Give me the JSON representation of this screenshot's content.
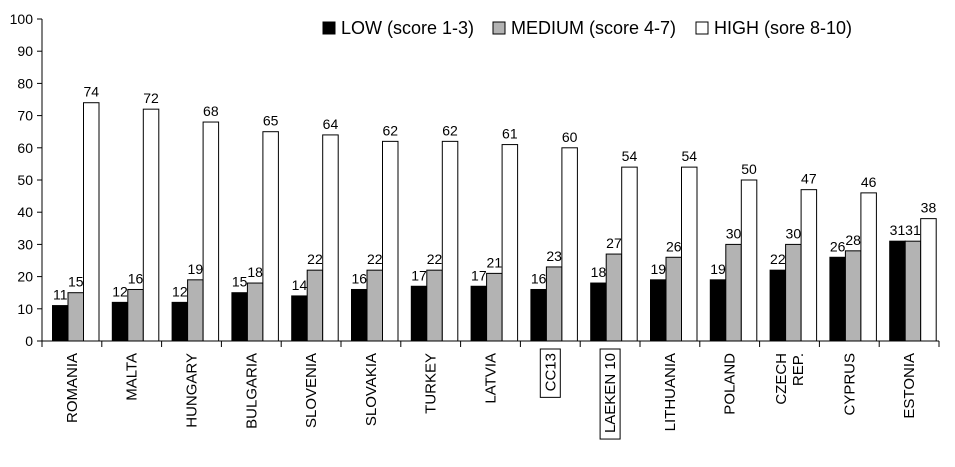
{
  "chart_data": {
    "type": "bar",
    "title": "",
    "xlabel": "",
    "ylabel": "",
    "ylim": [
      0,
      100
    ],
    "yticks": [
      0,
      10,
      20,
      30,
      40,
      50,
      60,
      70,
      80,
      90,
      100
    ],
    "grid": false,
    "legend_position": "top-right",
    "categories": [
      "ROMANIA",
      "MALTA",
      "HUNGARY",
      "BULGARIA",
      "SLOVENIA",
      "SLOVAKIA",
      "TURKEY",
      "LATVIA",
      "CC13",
      "LAEKEN 10",
      "LITHUANIA",
      "POLAND",
      "CZECH REP.",
      "CYPRUS",
      "ESTONIA"
    ],
    "category_lines": [
      [
        "ROMANIA"
      ],
      [
        "MALTA"
      ],
      [
        "HUNGARY"
      ],
      [
        "BULGARIA"
      ],
      [
        "SLOVENIA"
      ],
      [
        "SLOVAKIA"
      ],
      [
        "TURKEY"
      ],
      [
        "LATVIA"
      ],
      [
        "CC13"
      ],
      [
        "LAEKEN 10"
      ],
      [
        "LITHUANIA"
      ],
      [
        "POLAND"
      ],
      [
        "CZECH",
        "REP."
      ],
      [
        "CYPRUS"
      ],
      [
        "ESTONIA"
      ]
    ],
    "boxed_categories": [
      "CC13",
      "LAEKEN 10"
    ],
    "series": [
      {
        "name": "LOW (score 1-3)",
        "color": "#000000",
        "values": [
          11,
          12,
          12,
          15,
          14,
          16,
          17,
          17,
          16,
          18,
          19,
          19,
          22,
          26,
          31
        ]
      },
      {
        "name": "MEDIUM (score 4-7)",
        "color": "#b3b3b3",
        "values": [
          15,
          16,
          19,
          18,
          22,
          22,
          22,
          21,
          23,
          27,
          26,
          30,
          30,
          28,
          31
        ]
      },
      {
        "name": "HIGH (sore 8-10)",
        "color": "#ffffff",
        "values": [
          74,
          72,
          68,
          65,
          64,
          62,
          62,
          61,
          60,
          54,
          54,
          50,
          47,
          46,
          38
        ]
      }
    ]
  }
}
